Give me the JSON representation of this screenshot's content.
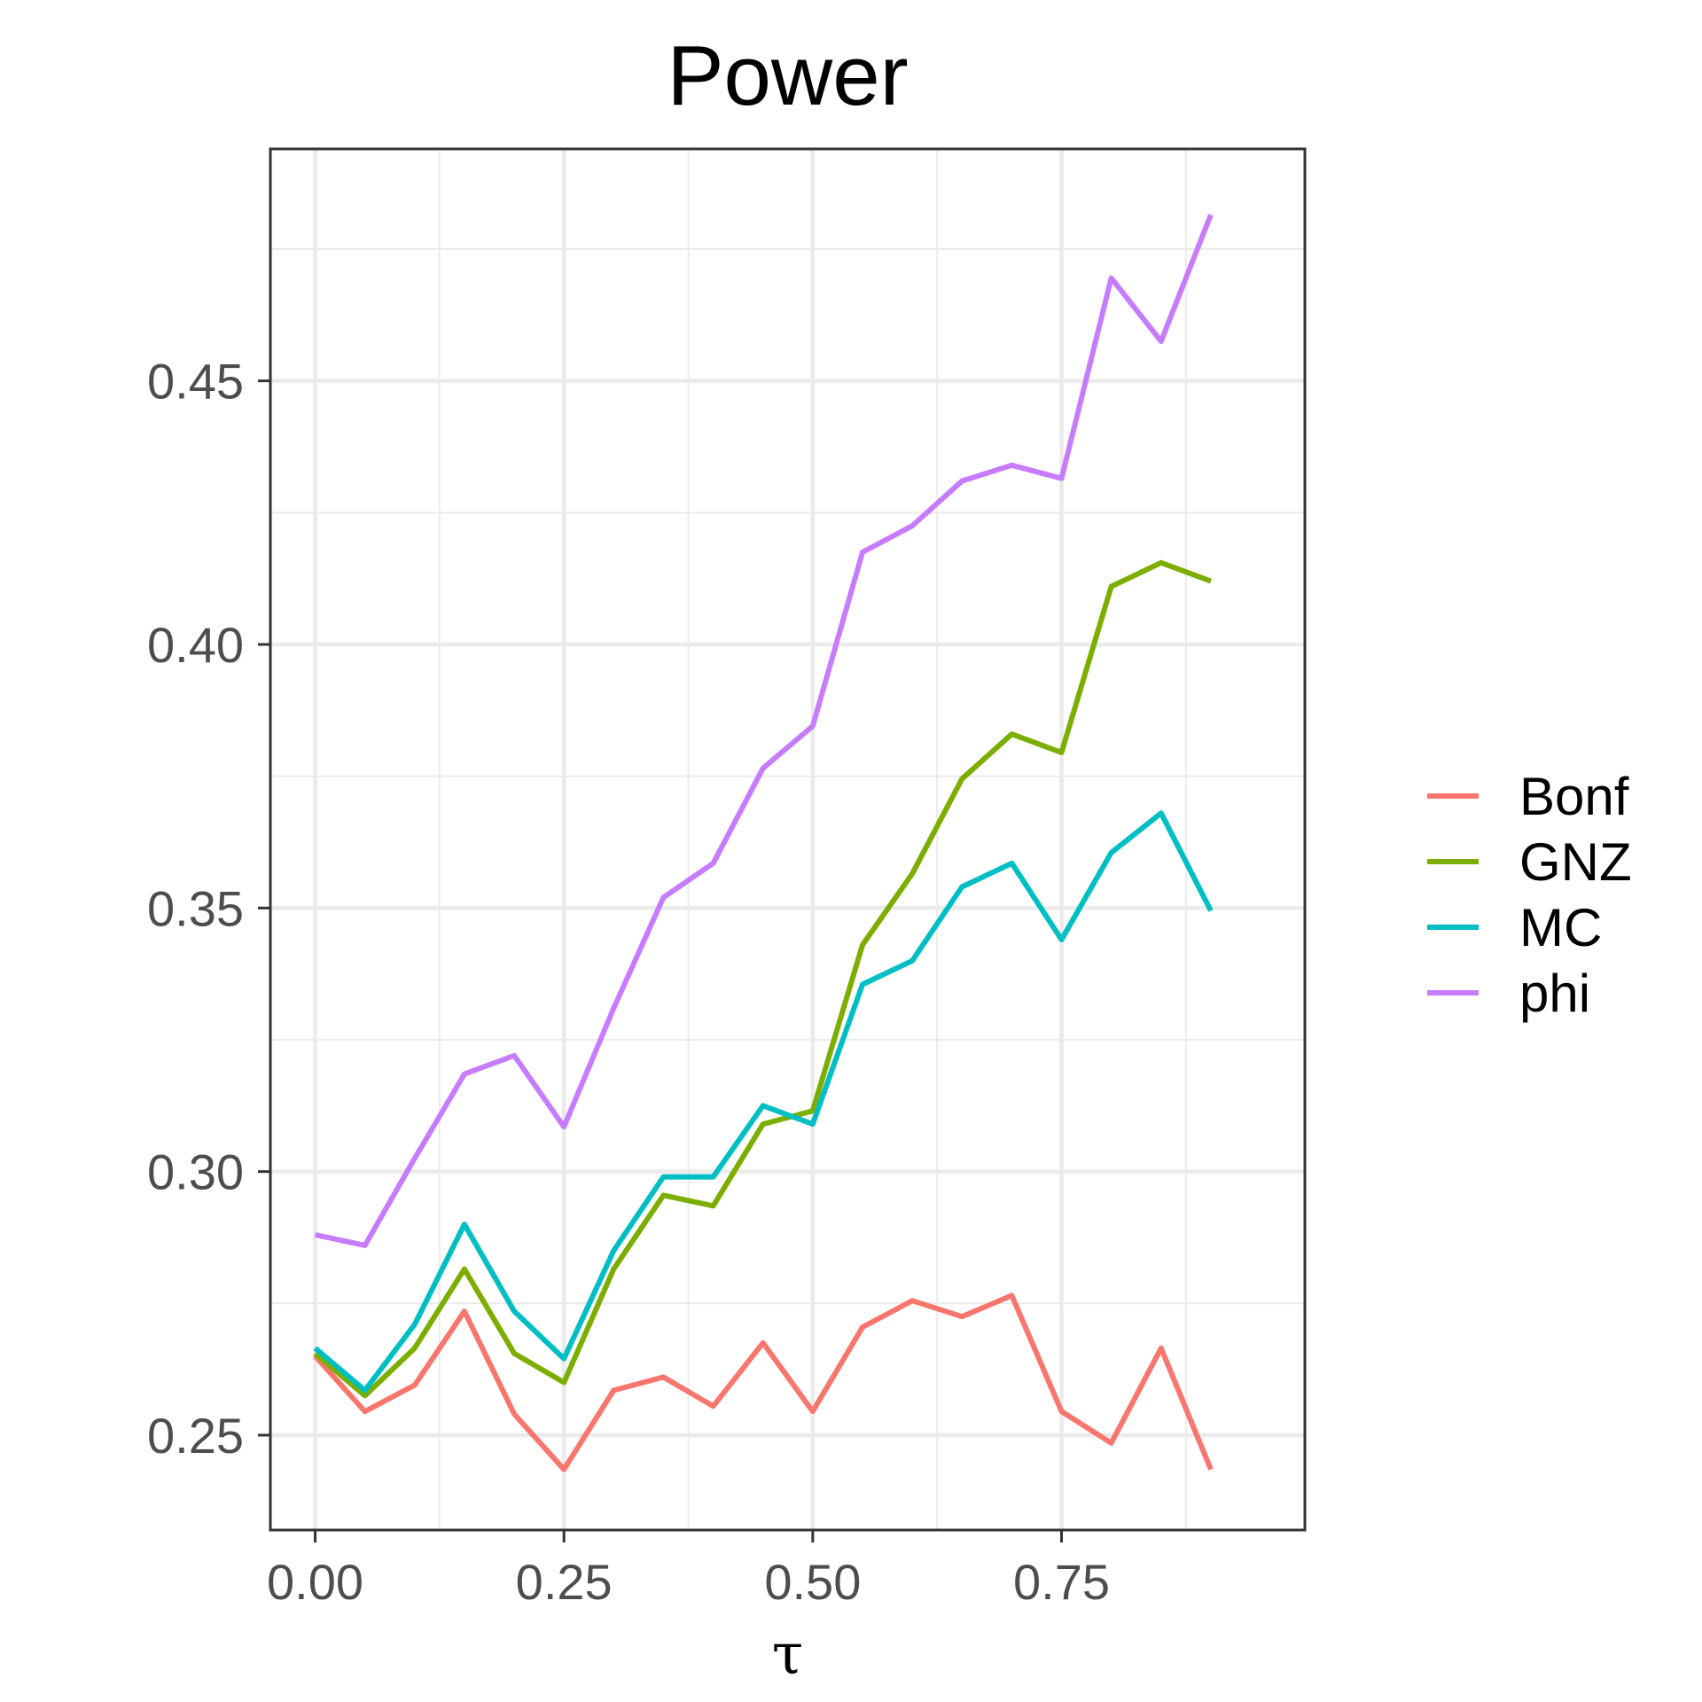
{
  "chart_data": {
    "type": "line",
    "title": "Power",
    "xlabel": "τ",
    "ylabel": "",
    "xlim": [
      -0.045,
      0.9945
    ],
    "ylim": [
      0.232,
      0.494
    ],
    "xticks": [
      0.0,
      0.25,
      0.5,
      0.75
    ],
    "xtick_labels": [
      "0.00",
      "0.25",
      "0.50",
      "0.75"
    ],
    "yticks": [
      0.25,
      0.3,
      0.35,
      0.4,
      0.45
    ],
    "ytick_labels": [
      "0.25",
      "0.30",
      "0.35",
      "0.40",
      "0.45"
    ],
    "grid": true,
    "legend_position": "right",
    "x": [
      0.0,
      0.05,
      0.1,
      0.15,
      0.2,
      0.25,
      0.3,
      0.35,
      0.4,
      0.45,
      0.5,
      0.55,
      0.6,
      0.65,
      0.7,
      0.75,
      0.8,
      0.85,
      0.9
    ],
    "series": [
      {
        "name": "Bonf",
        "color": "#F8766D",
        "values": [
          0.265,
          0.2545,
          0.2595,
          0.2735,
          0.254,
          0.2435,
          0.2585,
          0.261,
          0.2555,
          0.2675,
          0.2545,
          0.2705,
          0.2755,
          0.2725,
          0.2765,
          0.2545,
          0.2485,
          0.2665,
          0.2435
        ]
      },
      {
        "name": "GNZ",
        "color": "#7CAE00",
        "values": [
          0.2655,
          0.2575,
          0.2665,
          0.2815,
          0.2655,
          0.26,
          0.2815,
          0.2955,
          0.2935,
          0.309,
          0.3115,
          0.343,
          0.3565,
          0.3745,
          0.383,
          0.3795,
          0.411,
          0.4155,
          0.412
        ]
      },
      {
        "name": "MC",
        "color": "#00BFC4",
        "values": [
          0.2665,
          0.2585,
          0.271,
          0.29,
          0.2735,
          0.2645,
          0.285,
          0.299,
          0.299,
          0.3125,
          0.309,
          0.3355,
          0.34,
          0.354,
          0.3585,
          0.344,
          0.3605,
          0.368,
          0.3495
        ]
      },
      {
        "name": "phi",
        "color": "#C77CFF",
        "values": [
          0.288,
          0.286,
          0.3025,
          0.3185,
          0.322,
          0.3085,
          0.331,
          0.352,
          0.3585,
          0.3765,
          0.3845,
          0.4175,
          0.4225,
          0.431,
          0.434,
          0.4315,
          0.4695,
          0.4575,
          0.4815
        ]
      }
    ]
  }
}
